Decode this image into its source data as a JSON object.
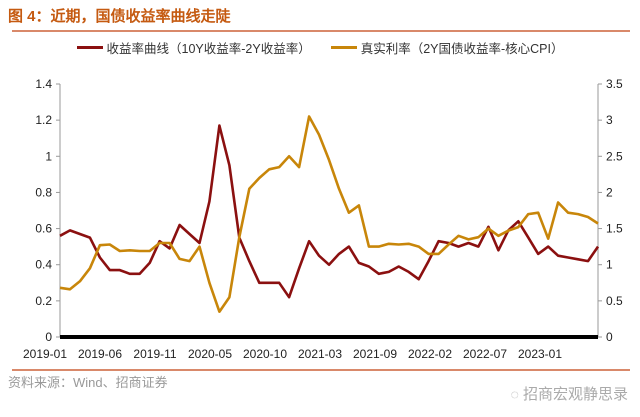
{
  "title": "图 4：近期，国债收益率曲线走陡",
  "source": "资料来源：Wind、招商证券",
  "watermark": "招商宏观静思录",
  "watermark_icon": "wechat-icon",
  "colors": {
    "title": "#c55a11",
    "series1": "#8b1010",
    "series2": "#c8860a"
  },
  "chart_data": {
    "type": "line",
    "title": "",
    "xlabel": "",
    "ylabel_left": "",
    "ylabel_right": "",
    "ylim_left": [
      0,
      1.4
    ],
    "ylim_right": [
      0,
      3.5
    ],
    "yticks_left": [
      "0",
      "0.2",
      "0.4",
      "0.6",
      "0.8",
      "1",
      "1.2",
      "1.4"
    ],
    "yticks_right": [
      "0",
      "0.5",
      "1",
      "1.5",
      "2",
      "2.5",
      "3",
      "3.5"
    ],
    "xtick_labels": [
      "2019-01",
      "2019-06",
      "2019-11",
      "2020-05",
      "2020-10",
      "2021-03",
      "2021-09",
      "2022-02",
      "2022-07",
      "2023-01"
    ],
    "grid": false,
    "legend_placement": "top",
    "x": [
      "2019-01",
      "2019-02",
      "2019-03",
      "2019-04",
      "2019-05",
      "2019-06",
      "2019-07",
      "2019-08",
      "2019-09",
      "2019-10",
      "2019-11",
      "2019-12",
      "2020-01",
      "2020-02",
      "2020-03",
      "2020-04",
      "2020-05",
      "2020-06",
      "2020-07",
      "2020-08",
      "2020-09",
      "2020-10",
      "2020-11",
      "2020-12",
      "2021-01",
      "2021-02",
      "2021-03",
      "2021-04",
      "2021-05",
      "2021-06",
      "2021-07",
      "2021-08",
      "2021-09",
      "2021-10",
      "2021-11",
      "2021-12",
      "2022-01",
      "2022-02",
      "2022-03",
      "2022-04",
      "2022-05",
      "2022-06",
      "2022-07",
      "2022-08",
      "2022-09",
      "2022-10",
      "2022-11",
      "2022-12",
      "2023-01",
      "2023-02",
      "2023-03",
      "2023-04",
      "2023-05",
      "2023-06",
      "2023-07"
    ],
    "series": [
      {
        "name": "收益率曲线（10Y收益率-2Y收益率）",
        "axis": "left",
        "values": [
          0.56,
          0.59,
          0.57,
          0.55,
          0.44,
          0.37,
          0.37,
          0.35,
          0.35,
          0.41,
          0.53,
          0.49,
          0.62,
          0.57,
          0.52,
          0.75,
          1.17,
          0.95,
          0.55,
          0.42,
          0.3,
          0.3,
          0.3,
          0.22,
          0.38,
          0.53,
          0.45,
          0.4,
          0.46,
          0.5,
          0.41,
          0.39,
          0.35,
          0.36,
          0.39,
          0.36,
          0.32,
          0.42,
          0.53,
          0.52,
          0.5,
          0.52,
          0.5,
          0.61,
          0.48,
          0.59,
          0.64,
          0.55,
          0.46,
          0.5,
          0.45,
          0.44,
          0.43,
          0.42,
          0.5
        ]
      },
      {
        "name": "真实利率（2Y国债收益率-核心CPI）",
        "axis": "right",
        "values": [
          0.68,
          0.66,
          0.77,
          0.95,
          1.27,
          1.28,
          1.19,
          1.2,
          1.19,
          1.19,
          1.3,
          1.3,
          1.08,
          1.05,
          1.25,
          0.75,
          0.35,
          0.55,
          1.38,
          2.05,
          2.2,
          2.32,
          2.35,
          2.5,
          2.35,
          3.05,
          2.8,
          2.45,
          2.05,
          1.72,
          1.82,
          1.25,
          1.25,
          1.29,
          1.28,
          1.29,
          1.25,
          1.15,
          1.15,
          1.28,
          1.4,
          1.35,
          1.38,
          1.5,
          1.4,
          1.47,
          1.52,
          1.7,
          1.72,
          1.36,
          1.86,
          1.72,
          1.7,
          1.66,
          1.57
        ]
      }
    ]
  }
}
